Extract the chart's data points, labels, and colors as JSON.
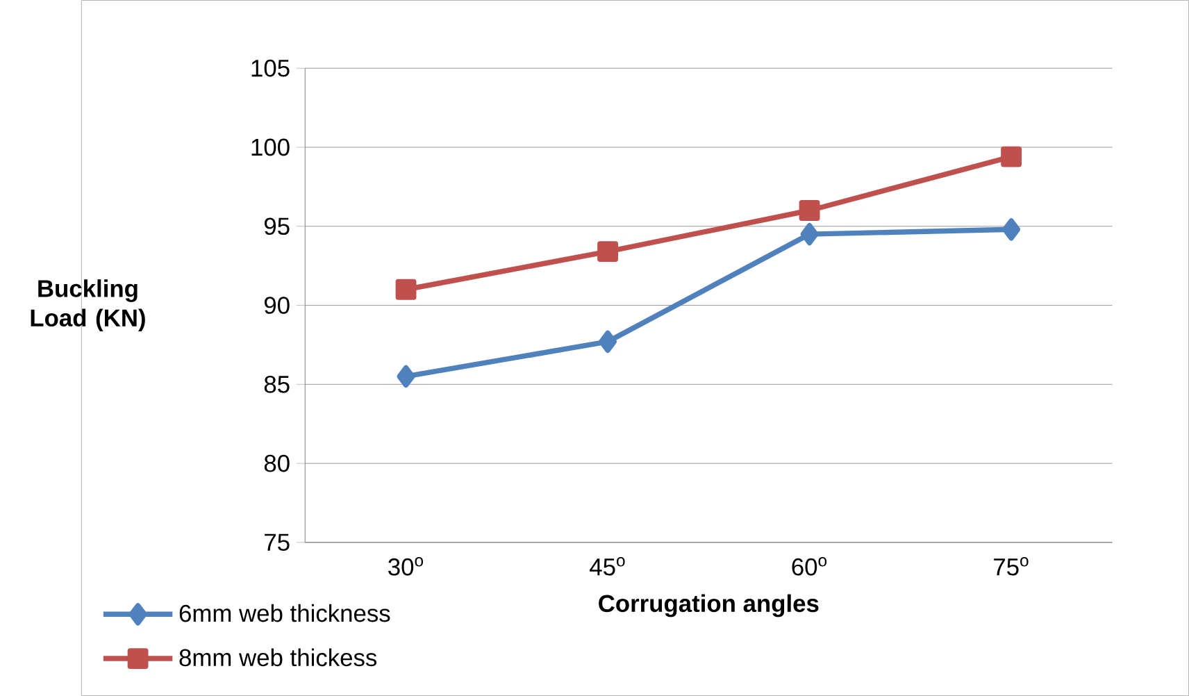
{
  "chart_data": {
    "type": "line",
    "xlabel": "Corrugation angles",
    "ylabel": "Buckling Load (KN)",
    "categories": [
      "30$^{o}$",
      "45$^{o}$",
      "60$^{o}$",
      "75$^{o}$"
    ],
    "series": [
      {
        "name": "6mm web thickness",
        "color": "#4f81bd",
        "marker": "diamond",
        "values": [
          85.5,
          87.7,
          94.5,
          94.8
        ]
      },
      {
        "name": "8mm web thickess",
        "color": "#c0504d",
        "marker": "square",
        "values": [
          91,
          93.4,
          96,
          99.4
        ]
      }
    ],
    "ylim": [
      75,
      105
    ],
    "yticks": [
      75,
      80,
      85,
      90,
      95,
      100,
      105
    ],
    "grid": "y",
    "legend": "bottom left"
  }
}
